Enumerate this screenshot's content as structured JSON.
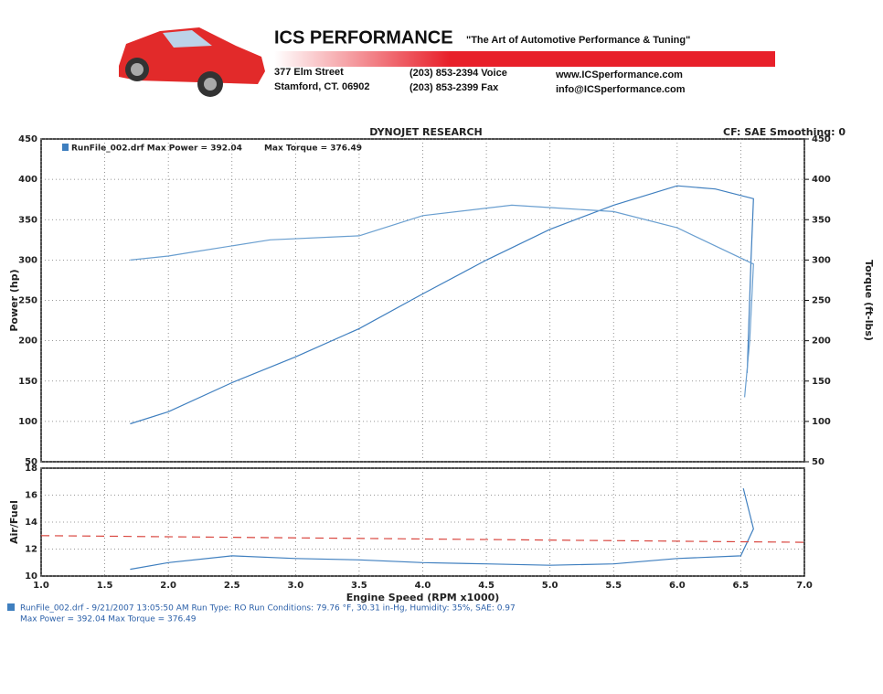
{
  "header": {
    "company": "ICS PERFORMANCE",
    "tagline": "\"The Art of Automotive Performance & Tuning\"",
    "address": [
      "377 Elm Street",
      "Stamford, CT. 06902"
    ],
    "phones": [
      "(203) 853-2394 Voice",
      "(203) 853-2399 Fax"
    ],
    "web": [
      "www.ICSperformance.com",
      "info@ICSperformance.com"
    ]
  },
  "chart_data": [
    {
      "type": "line",
      "title": "DYNOJET RESEARCH",
      "subtitle": "CF: SAE Smoothing: 0",
      "ylabel": "Power (hp)",
      "y2label": "Torque (ft-lbs)",
      "xlim": [
        1,
        7
      ],
      "ylim": [
        50,
        450
      ],
      "yticks": [
        50,
        100,
        150,
        200,
        250,
        300,
        350,
        400,
        450
      ],
      "y2lim": [
        50,
        450
      ],
      "y2ticks": [
        50,
        100,
        150,
        200,
        250,
        300,
        350,
        400,
        450
      ],
      "grid": true,
      "series": [
        {
          "name": "RunFile_002.drf Max Power = 392.04",
          "color": "#3f7fbf",
          "x": [
            1.7,
            2.0,
            2.5,
            3.0,
            3.5,
            4.0,
            4.5,
            5.0,
            5.5,
            6.0,
            6.3,
            6.6,
            6.58,
            6.55
          ],
          "values": [
            97,
            112,
            148,
            180,
            215,
            258,
            300,
            338,
            368,
            392,
            388,
            376,
            300,
            160
          ]
        },
        {
          "name": "Max Torque = 376.49",
          "color": "#6a9fd0",
          "axis": "y2",
          "x": [
            1.7,
            2.0,
            2.2,
            2.8,
            3.5,
            4.0,
            4.7,
            5.0,
            5.5,
            6.0,
            6.6,
            6.57,
            6.53
          ],
          "values": [
            300,
            305,
            310,
            325,
            330,
            355,
            368,
            365,
            360,
            340,
            295,
            200,
            130
          ]
        }
      ]
    },
    {
      "type": "line",
      "ylabel": "Air/Fuel",
      "xlabel": "Engine Speed (RPM x1000)",
      "xlim": [
        1,
        7
      ],
      "xticks": [
        {
          "value": 1,
          "label": "1.0"
        },
        1.5,
        {
          "value": 2,
          "label": "2.0"
        },
        2.5,
        {
          "value": 3,
          "label": "3.0"
        },
        3.5,
        {
          "value": 4,
          "label": "4.0"
        },
        4.5,
        {
          "value": 5,
          "label": "5.0"
        },
        5.5,
        {
          "value": 6,
          "label": "6.0"
        },
        6.5,
        {
          "value": 7,
          "label": "7.0"
        }
      ],
      "ylim": [
        10,
        18
      ],
      "yticks": [
        10,
        12,
        14,
        16,
        18
      ],
      "grid": true,
      "series": [
        {
          "color": "#3f7fbf",
          "x": [
            1.7,
            2.0,
            2.5,
            3.0,
            3.5,
            4.0,
            4.5,
            5.0,
            5.5,
            6.0,
            6.5,
            6.6,
            6.52
          ],
          "values": [
            10.5,
            11.0,
            11.5,
            11.3,
            11.2,
            11.0,
            10.9,
            10.8,
            10.9,
            11.3,
            11.5,
            13.5,
            16.5
          ]
        },
        {
          "color": "#d9463f",
          "dash": true,
          "x": [
            1,
            7
          ],
          "values": [
            13.0,
            12.5
          ]
        }
      ]
    }
  ],
  "footer": [
    "RunFile_002.drf - 9/21/2007 13:05:50 AM  Run Type: RO  Run Conditions: 79.76 °F, 30.31 in-Hg,  Humidity: 35%,  SAE: 0.97",
    "Max Power = 392.04  Max Torque = 376.49"
  ]
}
